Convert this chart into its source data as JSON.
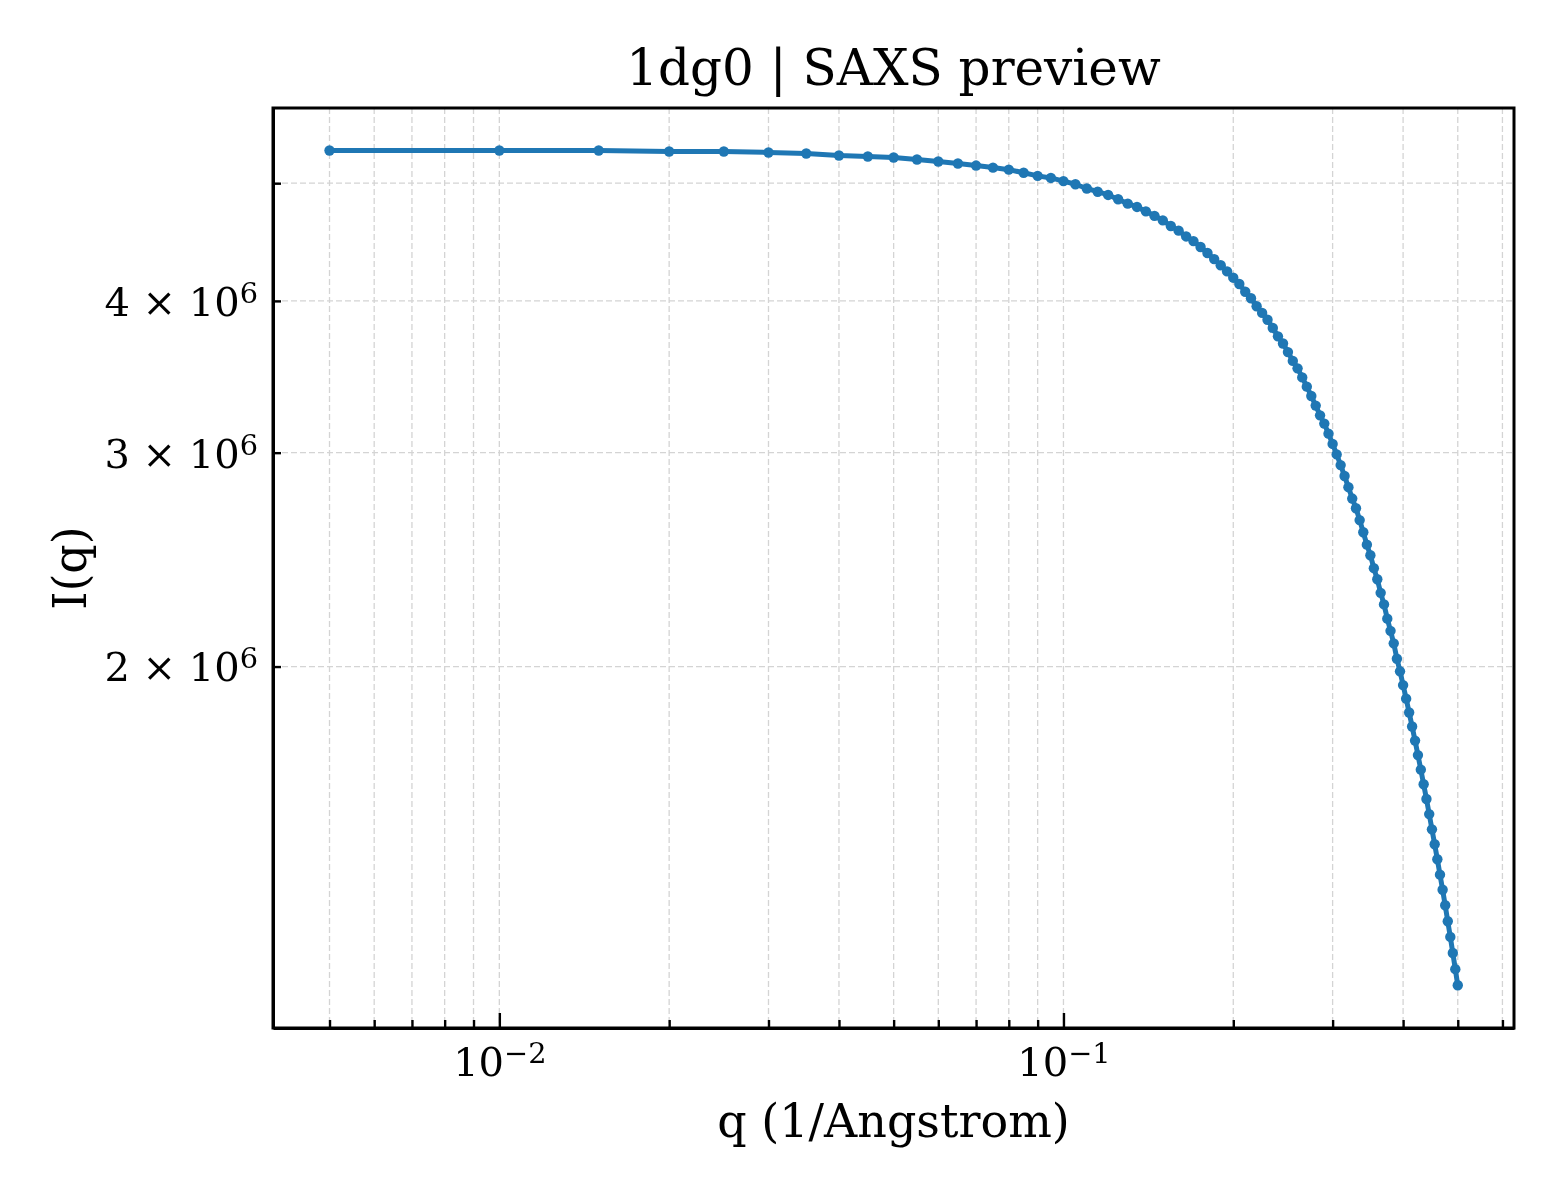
{
  "chart_data": {
    "type": "line",
    "title": "1dg0 | SAXS preview",
    "xlabel": "q (1/Angstrom)",
    "ylabel": "I(q)",
    "x": [
      0.005,
      0.01,
      0.015,
      0.02,
      0.025,
      0.03,
      0.035,
      0.04,
      0.045,
      0.05,
      0.055,
      0.06,
      0.065,
      0.07,
      0.075,
      0.08,
      0.085,
      0.09,
      0.095,
      0.1,
      0.105,
      0.11,
      0.115,
      0.12,
      0.125,
      0.13,
      0.135,
      0.14,
      0.145,
      0.15,
      0.155,
      0.16,
      0.165,
      0.17,
      0.175,
      0.18,
      0.185,
      0.19,
      0.195,
      0.2,
      0.205,
      0.21,
      0.215,
      0.22,
      0.225,
      0.23,
      0.235,
      0.24,
      0.245,
      0.25,
      0.255,
      0.26,
      0.265,
      0.27,
      0.275,
      0.28,
      0.285,
      0.29,
      0.295,
      0.3,
      0.305,
      0.31,
      0.315,
      0.32,
      0.325,
      0.33,
      0.335,
      0.34,
      0.345,
      0.35,
      0.355,
      0.36,
      0.365,
      0.37,
      0.375,
      0.38,
      0.385,
      0.39,
      0.395,
      0.4,
      0.405,
      0.41,
      0.415,
      0.42,
      0.425,
      0.43,
      0.435,
      0.44,
      0.445,
      0.45,
      0.455,
      0.46,
      0.465,
      0.47,
      0.475,
      0.48,
      0.485,
      0.49,
      0.495,
      0.5
    ],
    "values": [
      5320000,
      5320000,
      5320000,
      5310000,
      5310000,
      5300000,
      5290000,
      5270000,
      5260000,
      5250000,
      5230000,
      5210000,
      5190000,
      5170000,
      5150000,
      5130000,
      5100000,
      5070000,
      5050000,
      5020000,
      4990000,
      4950000,
      4920000,
      4890000,
      4850000,
      4810000,
      4780000,
      4740000,
      4700000,
      4660000,
      4610000,
      4570000,
      4520000,
      4480000,
      4430000,
      4380000,
      4330000,
      4280000,
      4230000,
      4180000,
      4130000,
      4070000,
      4020000,
      3960000,
      3910000,
      3860000,
      3800000,
      3740000,
      3690000,
      3630000,
      3570000,
      3520000,
      3460000,
      3400000,
      3340000,
      3280000,
      3220000,
      3170000,
      3110000,
      3050000,
      2990000,
      2930000,
      2870000,
      2810000,
      2750000,
      2700000,
      2640000,
      2580000,
      2520000,
      2470000,
      2410000,
      2360000,
      2300000,
      2250000,
      2190000,
      2140000,
      2090000,
      2030000,
      1982000,
      1931000,
      1882000,
      1833000,
      1785000,
      1738000,
      1691000,
      1645000,
      1600000,
      1556000,
      1512000,
      1469000,
      1428000,
      1388000,
      1348000,
      1310000,
      1272000,
      1234000,
      1198000,
      1162000,
      1127000,
      1093000
    ],
    "color": "#1f77b4",
    "xlim": [
      0.00397,
      0.629
    ],
    "ylim": [
      1008000,
      5766000
    ],
    "xticks": [
      {
        "value": 0.005,
        "label": null
      },
      {
        "value": 0.006,
        "label": null
      },
      {
        "value": 0.007,
        "label": null
      },
      {
        "value": 0.008,
        "label": null
      },
      {
        "value": 0.009,
        "label": null
      },
      {
        "value": 0.01,
        "label": "10$^{−2}$"
      },
      {
        "value": 0.02,
        "label": null
      },
      {
        "value": 0.03,
        "label": null
      },
      {
        "value": 0.04,
        "label": null
      },
      {
        "value": 0.05,
        "label": null
      },
      {
        "value": 0.06,
        "label": null
      },
      {
        "value": 0.07,
        "label": null
      },
      {
        "value": 0.08,
        "label": null
      },
      {
        "value": 0.09,
        "label": null
      },
      {
        "value": 0.1,
        "label": "10$^{−1}$"
      },
      {
        "value": 0.2,
        "label": null
      },
      {
        "value": 0.3,
        "label": null
      },
      {
        "value": 0.4,
        "label": null
      },
      {
        "value": 0.5,
        "label": null
      },
      {
        "value": 0.6,
        "label": null
      }
    ],
    "yticks": [
      {
        "value": 2000000,
        "label": "2 × 10$^{6}$"
      },
      {
        "value": 3000000,
        "label": "3 × 10$^{6}$"
      },
      {
        "value": 4000000,
        "label": "4 × 10$^{6}$"
      },
      {
        "value": 5000000,
        "label": null
      }
    ],
    "log": "xy",
    "grid": true,
    "marker": "circle",
    "line_style": "solid"
  }
}
